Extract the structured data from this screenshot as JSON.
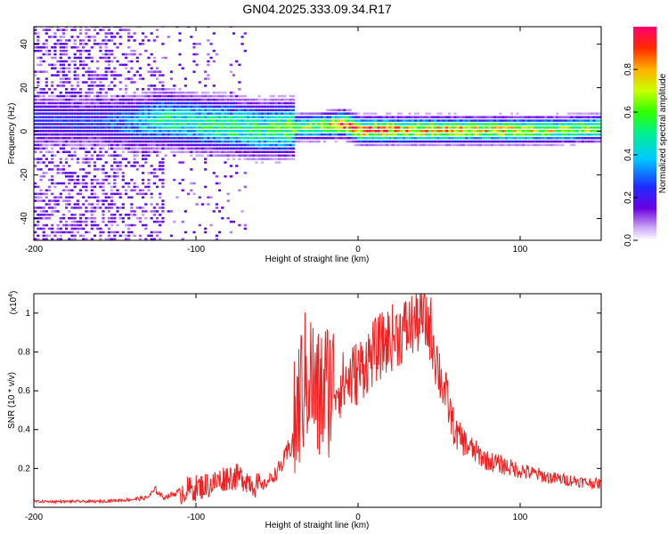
{
  "title": "GN04.2025.333.09.34.R17",
  "chart_data": [
    {
      "type": "heatmap",
      "title": "GN04.2025.333.09.34.R17",
      "xlabel": "Height of straight line (km)",
      "ylabel": "Frequency (Hz)",
      "xlim": [
        -200,
        150
      ],
      "ylim": [
        -50,
        48
      ],
      "xticks": [
        -200,
        -100,
        0,
        100
      ],
      "yticks": [
        -40,
        -20,
        0,
        20,
        40
      ],
      "colorbar": {
        "label": "Normalized spectral amplitude",
        "range": [
          0,
          1
        ],
        "ticks": [
          0.0,
          0.2,
          0.4,
          0.6,
          0.8
        ]
      },
      "ridge": {
        "x": [
          -160,
          -140,
          -120,
          -100,
          -80,
          -60,
          -40,
          -20,
          -10,
          0,
          20,
          40,
          60,
          80,
          100,
          120,
          150
        ],
        "y": [
          4,
          3,
          5,
          3,
          2,
          0,
          1,
          2,
          3,
          0,
          0,
          0,
          0,
          0,
          0,
          0,
          1
        ],
        "intensity": [
          0.25,
          0.35,
          0.5,
          0.5,
          0.55,
          0.55,
          0.6,
          0.7,
          0.95,
          0.9,
          0.85,
          0.8,
          0.8,
          0.75,
          0.75,
          0.7,
          0.65
        ]
      }
    },
    {
      "type": "line",
      "title": "",
      "xlabel": "Height of straight line (km)",
      "ylabel": "SNR (10 * v/v)",
      "yscale_label": "(x10",
      "yscale_exp": "4",
      "yscale_close": ")",
      "xlim": [
        -200,
        150
      ],
      "ylim": [
        0,
        1.1
      ],
      "xticks": [
        -200,
        -100,
        0,
        100
      ],
      "yticks": [
        0.2,
        0.4,
        0.6,
        0.8,
        1
      ],
      "color": "#ee2222",
      "series": [
        {
          "name": "SNR",
          "x": [
            -200,
            -180,
            -160,
            -140,
            -130,
            -125,
            -120,
            -110,
            -100,
            -90,
            -80,
            -70,
            -60,
            -55,
            -50,
            -45,
            -40,
            -35,
            -30,
            -25,
            -20,
            -10,
            0,
            10,
            20,
            30,
            35,
            40,
            45,
            50,
            55,
            60,
            70,
            80,
            100,
            120,
            140,
            150
          ],
          "values": [
            0.03,
            0.03,
            0.03,
            0.04,
            0.05,
            0.09,
            0.05,
            0.08,
            0.1,
            0.12,
            0.16,
            0.15,
            0.1,
            0.14,
            0.18,
            0.25,
            0.35,
            0.6,
            0.7,
            0.55,
            0.62,
            0.63,
            0.7,
            0.8,
            0.87,
            0.92,
            0.95,
            0.97,
            0.92,
            0.7,
            0.55,
            0.38,
            0.3,
            0.24,
            0.19,
            0.15,
            0.13,
            0.12
          ]
        }
      ]
    }
  ],
  "colors": {
    "line": "#ee2222",
    "frame": "#000000"
  }
}
